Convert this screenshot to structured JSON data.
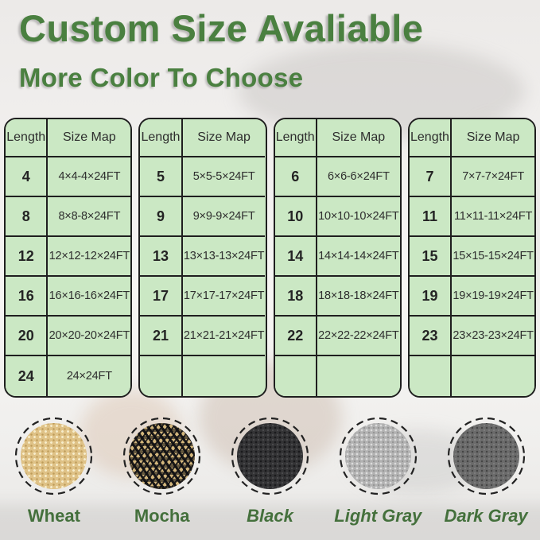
{
  "header": {
    "title": "Custom Size Avaliable",
    "subtitle": "More Color To Choose"
  },
  "size_tables": [
    {
      "headers": [
        "Length",
        "Size Map"
      ],
      "rows": [
        [
          "4",
          "4×4-4×24FT"
        ],
        [
          "8",
          "8×8-8×24FT"
        ],
        [
          "12",
          "12×12-12×24FT"
        ],
        [
          "16",
          "16×16-16×24FT"
        ],
        [
          "20",
          "20×20-20×24FT"
        ],
        [
          "24",
          "24×24FT"
        ]
      ]
    },
    {
      "headers": [
        "Length",
        "Size Map"
      ],
      "rows": [
        [
          "5",
          "5×5-5×24FT"
        ],
        [
          "9",
          "9×9-9×24FT"
        ],
        [
          "13",
          "13×13-13×24FT"
        ],
        [
          "17",
          "17×17-17×24FT"
        ],
        [
          "21",
          "21×21-21×24FT"
        ],
        [
          "",
          ""
        ]
      ]
    },
    {
      "headers": [
        "Length",
        "Size Map"
      ],
      "rows": [
        [
          "6",
          "6×6-6×24FT"
        ],
        [
          "10",
          "10×10-10×24FT"
        ],
        [
          "14",
          "14×14-14×24FT"
        ],
        [
          "18",
          "18×18-18×24FT"
        ],
        [
          "22",
          "22×22-22×24FT"
        ],
        [
          "",
          ""
        ]
      ]
    },
    {
      "headers": [
        "Length",
        "Size Map"
      ],
      "rows": [
        [
          "7",
          "7×7-7×24FT"
        ],
        [
          "11",
          "11×11-11×24FT"
        ],
        [
          "15",
          "15×15-15×24FT"
        ],
        [
          "19",
          "19×19-19×24FT"
        ],
        [
          "23",
          "23×23-23×24FT"
        ],
        [
          "",
          ""
        ]
      ]
    }
  ],
  "color_options": [
    {
      "name": "Wheat",
      "texture": "wheat",
      "base_color": "#dfc287",
      "italic": false
    },
    {
      "name": "Mocha",
      "texture": "mocha",
      "base_color": "#d3b67c",
      "italic": false
    },
    {
      "name": "Black",
      "texture": "black",
      "base_color": "#343436",
      "italic": true
    },
    {
      "name": "Light Gray",
      "texture": "light-gray",
      "base_color": "#b2b2b2",
      "italic": true
    },
    {
      "name": "Dark Gray",
      "texture": "dark-gray",
      "base_color": "#6b6b6b",
      "italic": true
    }
  ],
  "theme": {
    "title_green": "#4a8040",
    "label_green": "#44703c",
    "cell_green": "#cbe8c4",
    "table_border": "#1f1f1f"
  }
}
